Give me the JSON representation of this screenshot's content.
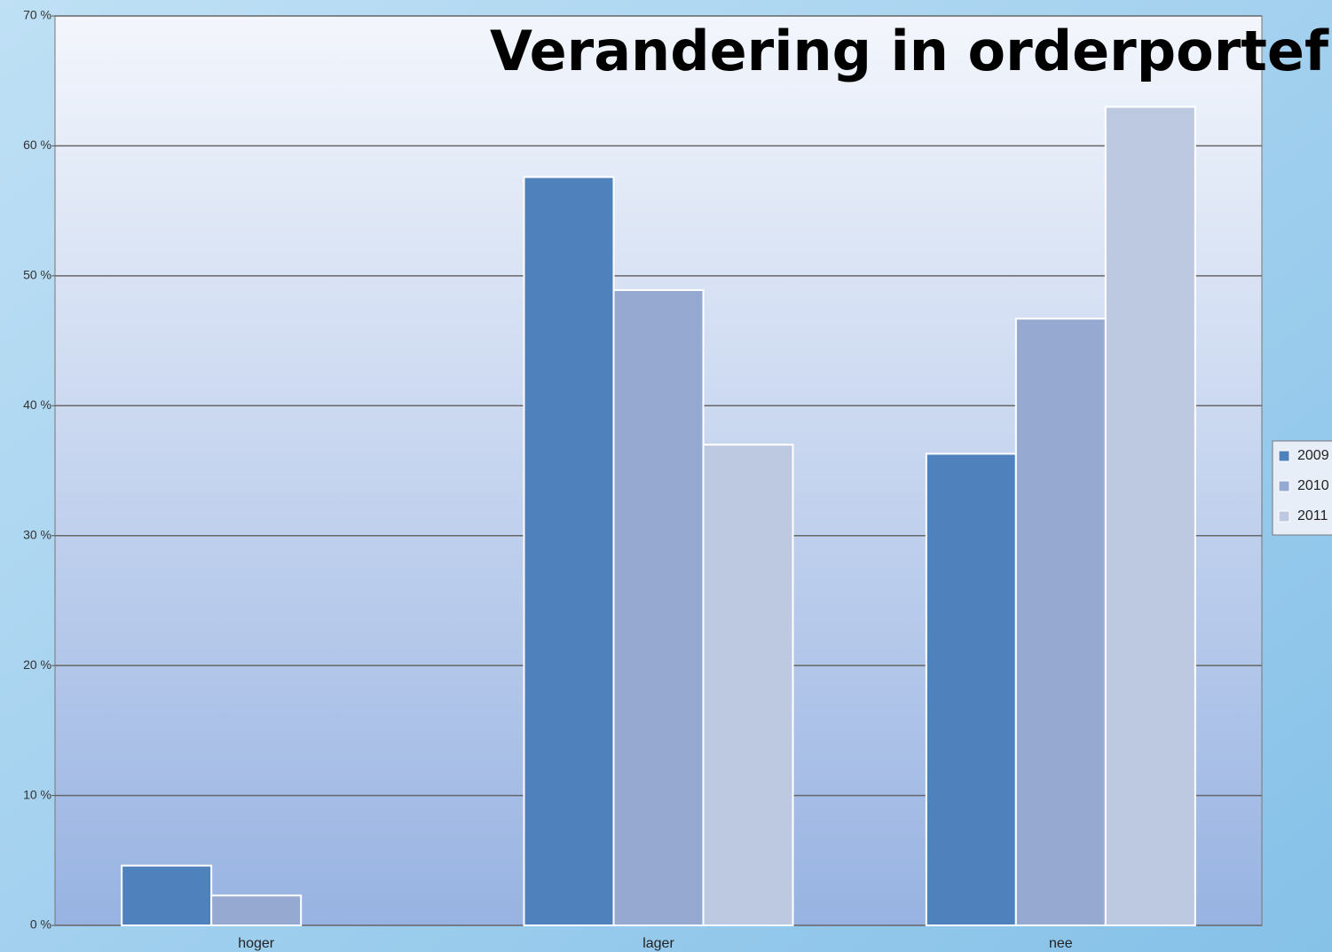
{
  "chart_data": {
    "type": "bar",
    "title": "Verandering in orderportefuille",
    "categories": [
      "hoger",
      "lager",
      "nee"
    ],
    "series": [
      {
        "name": "2009",
        "color": "#4f81bd",
        "values": [
          4.6,
          57.6,
          36.3
        ]
      },
      {
        "name": "2010",
        "color": "#95a9d1",
        "values": [
          2.3,
          48.9,
          46.7
        ]
      },
      {
        "name": "2011",
        "color": "#bdc8e1",
        "values": [
          0,
          37.0,
          63.0
        ]
      }
    ],
    "ylim": [
      0,
      70
    ],
    "yticks": [
      {
        "value": 0,
        "label": "0 %"
      },
      {
        "value": 10,
        "label": "10 %"
      },
      {
        "value": 20,
        "label": "20 %"
      },
      {
        "value": 30,
        "label": "30 %"
      },
      {
        "value": 40,
        "label": "40 %"
      },
      {
        "value": 50,
        "label": "50 %"
      },
      {
        "value": 60,
        "label": "60 %"
      },
      {
        "value": 70,
        "label": "70 %"
      }
    ],
    "grid": true,
    "legend": "right"
  }
}
